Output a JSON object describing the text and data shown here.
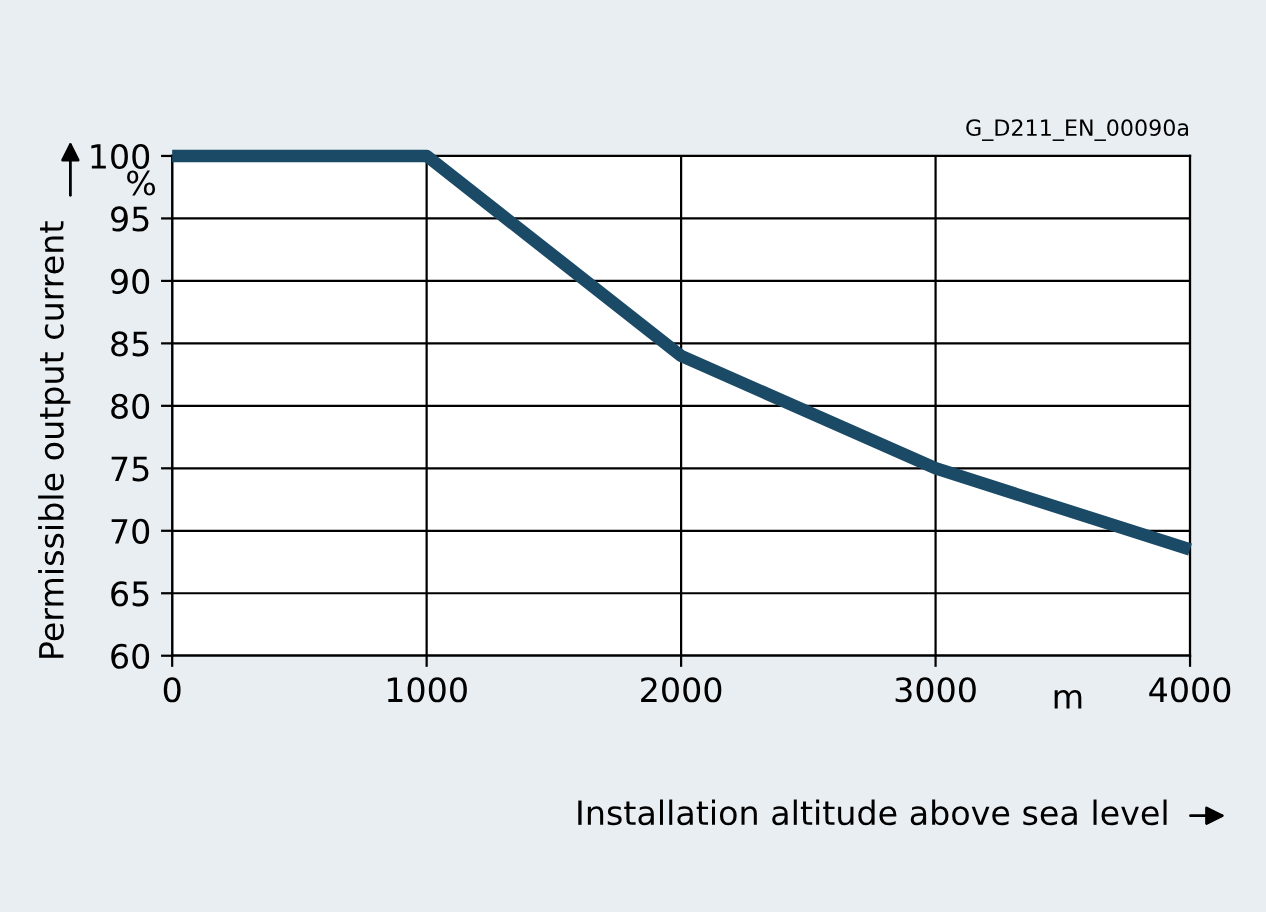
{
  "chart_data": {
    "type": "line",
    "xlabel": "Installation altitude above sea level",
    "ylabel": "Permissible output current",
    "x": [
      0,
      1000,
      2000,
      3000,
      4000
    ],
    "series": [
      {
        "color": "#1b4a66",
        "values": [
          100,
          100,
          84,
          75,
          68.5
        ]
      }
    ],
    "xlim": [
      0,
      4000
    ],
    "xticks": [
      0,
      1000,
      2000,
      3000,
      4000
    ],
    "ylim": [
      60,
      100
    ],
    "yticks": [
      60,
      65,
      70,
      75,
      80,
      85,
      90,
      95,
      100
    ],
    "grid": true,
    "marker": "none",
    "line_style": "solid",
    "annotations": [
      "G_D211_EN_00090a",
      "%",
      "m"
    ]
  }
}
